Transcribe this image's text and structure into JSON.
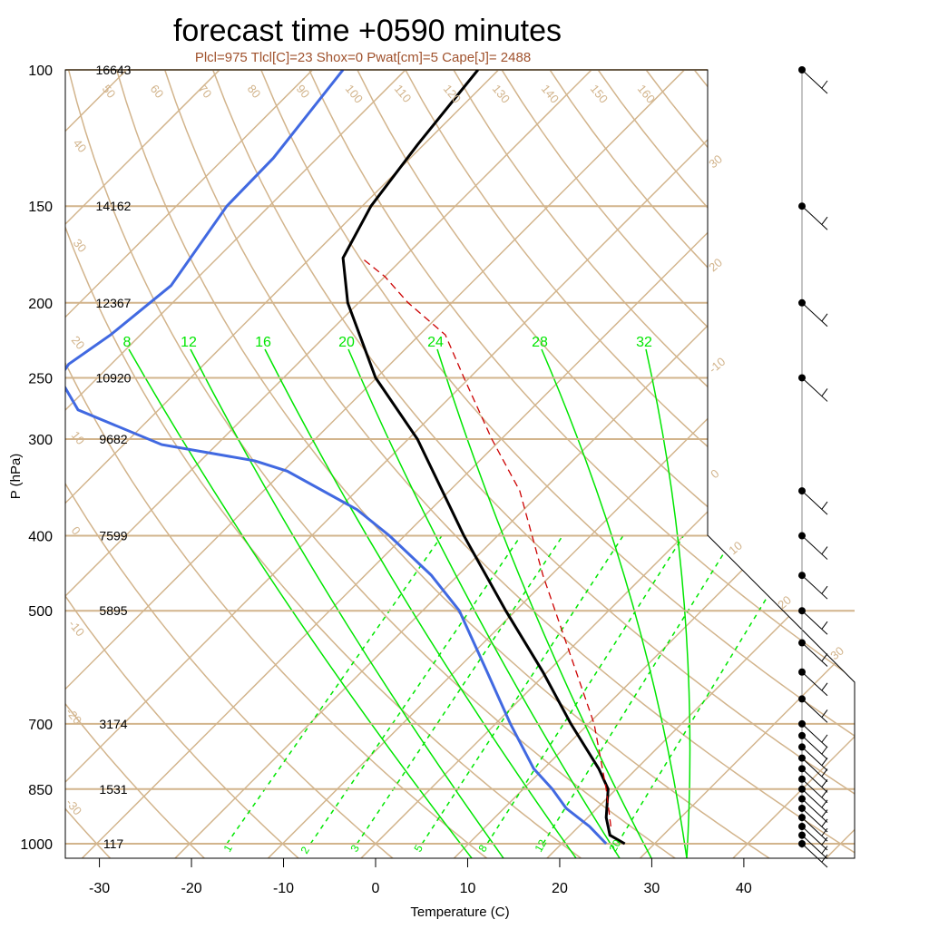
{
  "title": "forecast time +0590 minutes",
  "subtitle": "Plcl=975 Tlcl[C]=23 Shox=0 Pwat[cm]=5 Cape[J]= 2488",
  "chart_data": {
    "type": "line",
    "title": "forecast time +0590 minutes",
    "xlabel": "Temperature (C)",
    "ylabel": "P (hPa)",
    "x_ticks": [
      "-30",
      "-20",
      "-10",
      "0",
      "10",
      "20",
      "30",
      "40"
    ],
    "pressure_levels": [
      {
        "p": 100,
        "label": "100",
        "height": "16643"
      },
      {
        "p": 150,
        "label": "150",
        "height": "14162"
      },
      {
        "p": 200,
        "label": "200",
        "height": "12367"
      },
      {
        "p": 250,
        "label": "250",
        "height": "10920"
      },
      {
        "p": 300,
        "label": "300",
        "height": "9682"
      },
      {
        "p": 400,
        "label": "400",
        "height": "7599"
      },
      {
        "p": 500,
        "label": "500",
        "height": "5895"
      },
      {
        "p": 700,
        "label": "700",
        "height": "3174"
      },
      {
        "p": 850,
        "label": "850",
        "height": "1531"
      },
      {
        "p": 1000,
        "label": "1000",
        "height": "117"
      }
    ],
    "dry_adiabat_labels": [
      "50",
      "60",
      "70",
      "80",
      "90",
      "100",
      "110",
      "120",
      "130",
      "140",
      "150",
      "160"
    ],
    "isotherm_labels": [
      "40",
      "30",
      "20",
      "10",
      "0",
      "-10",
      "-20",
      "-30"
    ],
    "isotherm_right_labels": [
      "30",
      "20",
      "-10",
      "0",
      "10",
      "20",
      "30"
    ],
    "moist_adiabat_labels": [
      "8",
      "12",
      "16",
      "20",
      "24",
      "28",
      "32"
    ],
    "mixing_ratio_labels": [
      "1",
      "2",
      "3",
      "5",
      "8",
      "12",
      "20"
    ],
    "series": [
      {
        "name": "",
        "color": "#000000",
        "points": [
          [
            26.8,
            1000
          ],
          [
            25.2,
            975
          ],
          [
            24.8,
            925
          ],
          [
            25.0,
            850
          ],
          [
            24.0,
            800
          ],
          [
            21.0,
            700
          ],
          [
            18.0,
            600
          ],
          [
            14.0,
            500
          ],
          [
            9.5,
            400
          ],
          [
            4.5,
            300
          ],
          [
            0.0,
            250
          ],
          [
            -3.0,
            200
          ],
          [
            -3.5,
            175
          ],
          [
            -0.5,
            150
          ],
          [
            4.5,
            125
          ],
          [
            11.0,
            100
          ]
        ]
      },
      {
        "name": "",
        "color": "#4169e1",
        "points": [
          [
            24.8,
            1000
          ],
          [
            23.0,
            950
          ],
          [
            20.5,
            900
          ],
          [
            19.0,
            850
          ],
          [
            17.0,
            800
          ],
          [
            14.5,
            700
          ],
          [
            12.0,
            600
          ],
          [
            9.0,
            500
          ],
          [
            6.0,
            450
          ],
          [
            1.5,
            400
          ],
          [
            -2.0,
            370
          ],
          [
            -9.5,
            330
          ],
          [
            -13.0,
            320
          ],
          [
            -23.0,
            305
          ],
          [
            -32.0,
            275
          ],
          [
            -34.0,
            250
          ],
          [
            -33.0,
            240
          ],
          [
            -28.5,
            220
          ],
          [
            -22.0,
            190
          ],
          [
            -16.0,
            150
          ],
          [
            -11.0,
            130
          ],
          [
            -3.5,
            100
          ]
        ]
      },
      {
        "name": "",
        "color": "#cc0000",
        "style": "dashed",
        "points": [
          [
            25.3,
            950
          ],
          [
            24.8,
            850
          ],
          [
            23.5,
            700
          ],
          [
            20.5,
            550
          ],
          [
            18.0,
            450
          ],
          [
            15.5,
            350
          ],
          [
            12.5,
            300
          ],
          [
            9.5,
            250
          ],
          [
            7.5,
            220
          ],
          [
            3.5,
            200
          ],
          [
            1.0,
            185
          ],
          [
            -1.5,
            175
          ]
        ]
      }
    ],
    "wind_barbs": [
      {
        "p": 100
      },
      {
        "p": 150
      },
      {
        "p": 200
      },
      {
        "p": 250
      },
      {
        "p": 350
      },
      {
        "p": 400
      },
      {
        "p": 450
      },
      {
        "p": 500
      },
      {
        "p": 550
      },
      {
        "p": 600
      },
      {
        "p": 650
      },
      {
        "p": 700
      },
      {
        "p": 725
      },
      {
        "p": 750
      },
      {
        "p": 775
      },
      {
        "p": 800
      },
      {
        "p": 825
      },
      {
        "p": 850
      },
      {
        "p": 875
      },
      {
        "p": 900
      },
      {
        "p": 925
      },
      {
        "p": 950
      },
      {
        "p": 975
      },
      {
        "p": 1000
      }
    ]
  }
}
